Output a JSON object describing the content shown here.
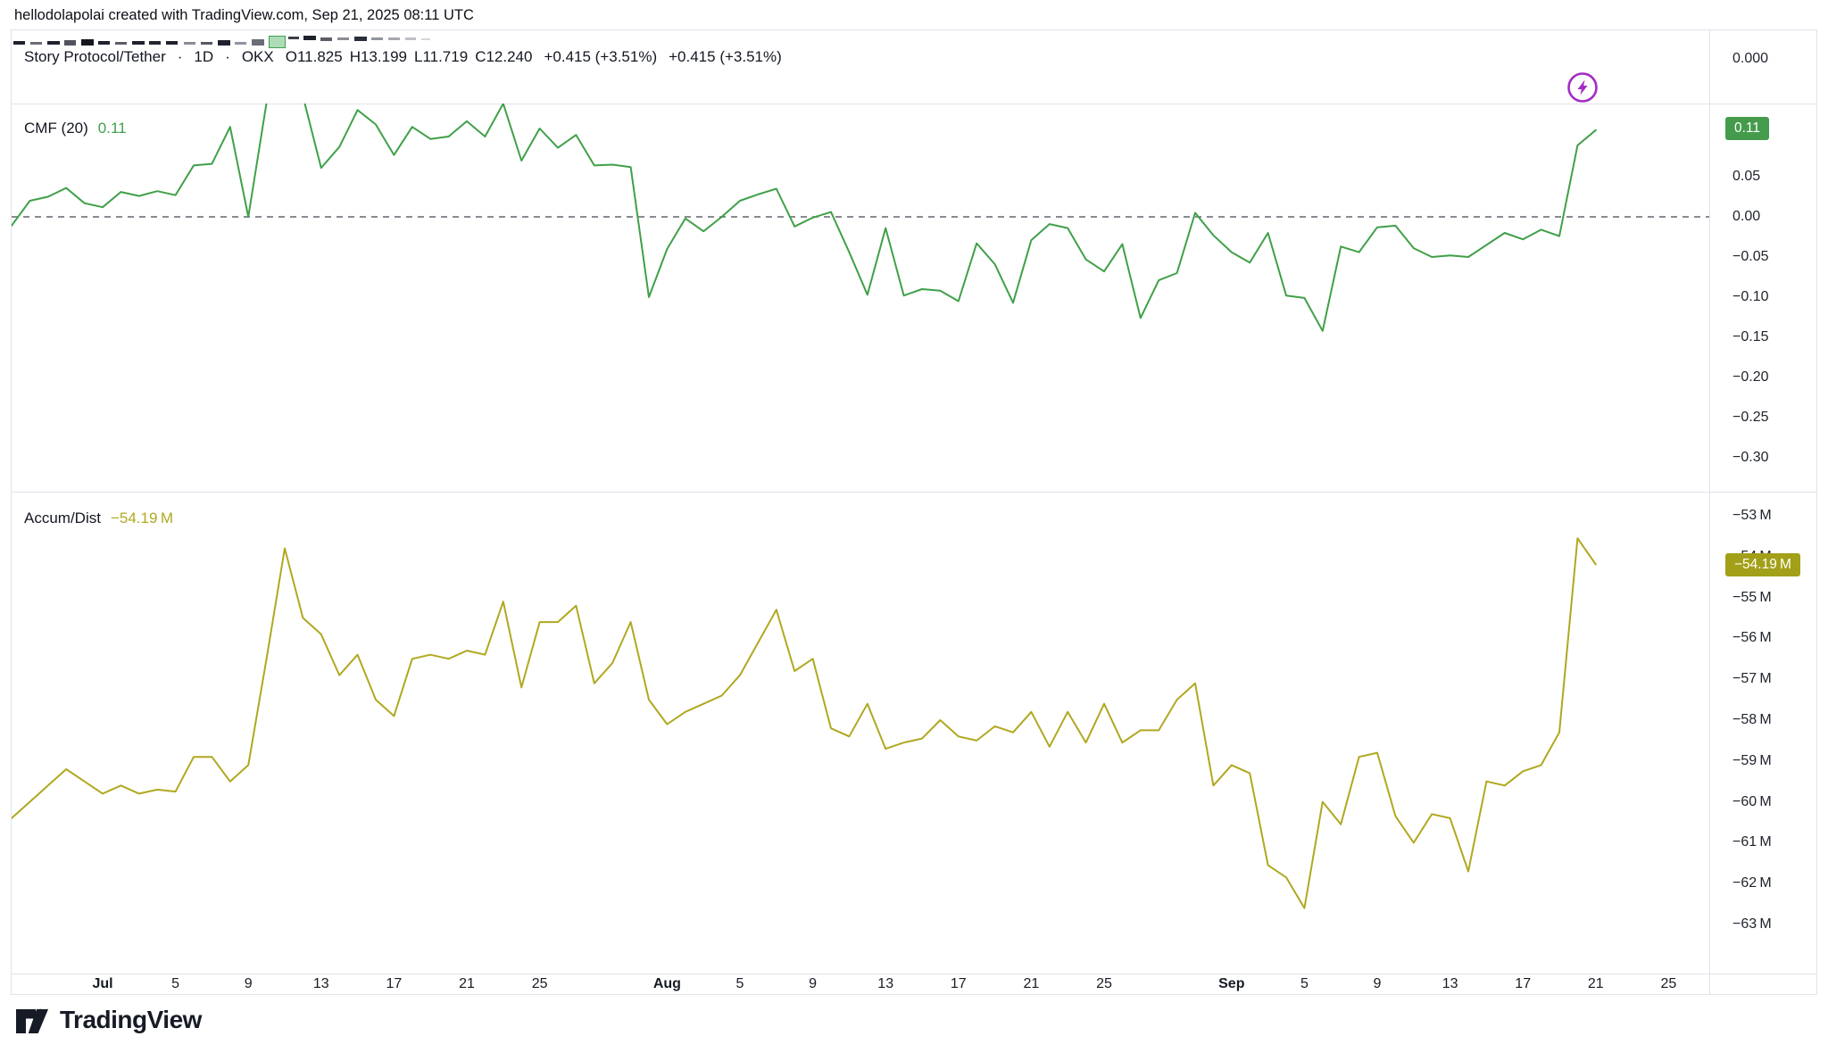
{
  "header": {
    "attribution": "hellodolapolai created with TradingView.com, Sep 21, 2025 08:11 UTC"
  },
  "legend": {
    "title": "Story Protocol/Tether",
    "sep": "·",
    "interval": "1D",
    "exchange": "OKX",
    "open": "O11.825",
    "high": "H13.199",
    "low": "L11.719",
    "close": "C12.240",
    "change": "+0.415 (+3.51%)",
    "change_repeat": "+0.415 (+3.51%)"
  },
  "panes": {
    "price": {
      "tick": "0.000"
    },
    "cmf": {
      "label": "CMF (20)",
      "value": "0.11",
      "badge": "0.11",
      "color": "#3fa048",
      "badge_color": "#459b4c",
      "axis_ticks": [
        {
          "t": "0.10",
          "v": 0.1
        },
        {
          "t": "0.05",
          "v": 0.05
        },
        {
          "t": "0.00",
          "v": 0.0
        },
        {
          "t": "−0.05",
          "v": -0.05
        },
        {
          "t": "−0.10",
          "v": -0.1
        },
        {
          "t": "−0.15",
          "v": -0.15
        },
        {
          "t": "−0.20",
          "v": -0.2
        },
        {
          "t": "−0.25",
          "v": -0.25
        },
        {
          "t": "−0.30",
          "v": -0.3
        }
      ]
    },
    "accum": {
      "label": "Accum/Dist",
      "value": "−54.19 M",
      "badge": "−54.19 M",
      "color": "#b0a81f",
      "badge_color": "#a2a018",
      "axis_ticks": [
        {
          "t": "−53 M",
          "v": -53
        },
        {
          "t": "−54 M",
          "v": -54
        },
        {
          "t": "−55 M",
          "v": -55
        },
        {
          "t": "−56 M",
          "v": -56
        },
        {
          "t": "−57 M",
          "v": -57
        },
        {
          "t": "−58 M",
          "v": -58
        },
        {
          "t": "−59 M",
          "v": -59
        },
        {
          "t": "−60 M",
          "v": -60
        },
        {
          "t": "−61 M",
          "v": -61
        },
        {
          "t": "−62 M",
          "v": -62
        },
        {
          "t": "−63 M",
          "v": -63
        }
      ]
    }
  },
  "time_axis": {
    "labels": [
      {
        "t": "Jul",
        "d": 0,
        "b": true
      },
      {
        "t": "5",
        "d": 4
      },
      {
        "t": "9",
        "d": 8
      },
      {
        "t": "13",
        "d": 12
      },
      {
        "t": "17",
        "d": 16
      },
      {
        "t": "21",
        "d": 20
      },
      {
        "t": "25",
        "d": 24
      },
      {
        "t": "Aug",
        "d": 31,
        "b": true
      },
      {
        "t": "5",
        "d": 35
      },
      {
        "t": "9",
        "d": 39
      },
      {
        "t": "13",
        "d": 43
      },
      {
        "t": "17",
        "d": 47
      },
      {
        "t": "21",
        "d": 51
      },
      {
        "t": "25",
        "d": 55
      },
      {
        "t": "Sep",
        "d": 62,
        "b": true
      },
      {
        "t": "5",
        "d": 66
      },
      {
        "t": "9",
        "d": 70
      },
      {
        "t": "13",
        "d": 74
      },
      {
        "t": "17",
        "d": 78
      },
      {
        "t": "21",
        "d": 82
      },
      {
        "t": "25",
        "d": 86
      }
    ]
  },
  "logo": {
    "text": "TradingView"
  },
  "icons": {
    "flash_color": "#a32cc4"
  },
  "chart_data": [
    {
      "type": "line",
      "name": "CMF (20)",
      "pane": "cmf",
      "color": "#3fa048",
      "x_unit": "days from Jul 1, 2025 (daily bars, Jun 26 – Sep 21)",
      "x_start_day": -5,
      "ylim": [
        -0.33,
        0.141
      ],
      "zero_line": 0,
      "last_value": 0.11,
      "values": [
        -0.011,
        0.02,
        0.025,
        0.036,
        0.017,
        0.012,
        0.031,
        0.026,
        0.032,
        0.027,
        0.064,
        0.066,
        0.112,
        0.0,
        0.142,
        0.165,
        0.15,
        0.061,
        0.087,
        0.133,
        0.115,
        0.077,
        0.112,
        0.097,
        0.1,
        0.119,
        0.1,
        0.141,
        0.07,
        0.11,
        0.086,
        0.102,
        0.064,
        0.065,
        0.062,
        -0.1,
        -0.04,
        -0.002,
        -0.018,
        0.0,
        0.02,
        0.028,
        0.035,
        -0.012,
        -0.001,
        0.006,
        -0.044,
        -0.097,
        -0.014,
        -0.098,
        -0.09,
        -0.092,
        -0.105,
        -0.033,
        -0.059,
        -0.107,
        -0.029,
        -0.009,
        -0.014,
        -0.053,
        -0.068,
        -0.034,
        -0.126,
        -0.079,
        -0.07,
        0.005,
        -0.023,
        -0.044,
        -0.057,
        -0.02,
        -0.098,
        -0.101,
        -0.142,
        -0.037,
        -0.044,
        -0.013,
        -0.011,
        -0.039,
        -0.05,
        -0.048,
        -0.05,
        -0.035,
        -0.02,
        -0.028,
        -0.016,
        -0.024,
        0.089,
        0.108
      ]
    },
    {
      "type": "line",
      "name": "Accum/Dist (millions USDT)",
      "pane": "accum",
      "color": "#b0a81f",
      "x_unit": "days from Jul 1, 2025 (daily bars, Jun 26 – Sep 21)",
      "x_start_day": -5,
      "ylim": [
        -63.5,
        -53
      ],
      "last_value": -54.19,
      "values": [
        -60.4,
        -60.0,
        -59.6,
        -59.2,
        -59.5,
        -59.8,
        -59.6,
        -59.8,
        -59.7,
        -59.75,
        -58.9,
        -58.9,
        -59.5,
        -59.1,
        -56.5,
        -53.8,
        -55.5,
        -55.9,
        -56.9,
        -56.4,
        -57.5,
        -57.9,
        -56.5,
        -56.4,
        -56.5,
        -56.3,
        -56.4,
        -55.1,
        -57.2,
        -55.6,
        -55.6,
        -55.2,
        -57.1,
        -56.6,
        -55.6,
        -57.5,
        -58.1,
        -57.8,
        -57.6,
        -57.4,
        -56.9,
        -56.1,
        -55.3,
        -56.8,
        -56.5,
        -58.2,
        -58.4,
        -57.6,
        -58.7,
        -58.55,
        -58.45,
        -58.0,
        -58.4,
        -58.5,
        -58.15,
        -58.3,
        -57.8,
        -58.65,
        -57.8,
        -58.55,
        -57.6,
        -58.55,
        -58.25,
        -58.25,
        -57.5,
        -57.1,
        -59.6,
        -59.1,
        -59.3,
        -61.55,
        -61.85,
        -62.6,
        -60.0,
        -60.55,
        -58.9,
        -58.8,
        -60.35,
        -61.0,
        -60.3,
        -60.4,
        -61.7,
        -59.5,
        -59.6,
        -59.25,
        -59.1,
        -58.3,
        -53.55,
        -54.19
      ]
    },
    {
      "type": "candlestick-strip",
      "name": "compressed price pane",
      "pane": "price",
      "candles": [
        {
          "x": 2,
          "y": 12,
          "w": 13,
          "h": 4,
          "c": "#1e222d"
        },
        {
          "x": 21,
          "y": 13,
          "w": 13,
          "h": 3,
          "c": "#6a6d78"
        },
        {
          "x": 40,
          "y": 12,
          "w": 14,
          "h": 4,
          "c": "#1e222d"
        },
        {
          "x": 59,
          "y": 11,
          "w": 13,
          "h": 6,
          "c": "#50535e"
        },
        {
          "x": 78,
          "y": 10,
          "w": 14,
          "h": 7,
          "c": "#15181f"
        },
        {
          "x": 97,
          "y": 12,
          "w": 13,
          "h": 4,
          "c": "#1e222d"
        },
        {
          "x": 116,
          "y": 13,
          "w": 13,
          "h": 3,
          "c": "#5b5e68"
        },
        {
          "x": 135,
          "y": 12,
          "w": 14,
          "h": 4,
          "c": "#1e222d"
        },
        {
          "x": 154,
          "y": 12,
          "w": 13,
          "h": 4,
          "c": "#23262e"
        },
        {
          "x": 173,
          "y": 12,
          "w": 13,
          "h": 4,
          "c": "#1e222d"
        },
        {
          "x": 193,
          "y": 13,
          "w": 13,
          "h": 3,
          "c": "#8a8d94"
        },
        {
          "x": 212,
          "y": 13,
          "w": 13,
          "h": 3,
          "c": "#565962"
        },
        {
          "x": 231,
          "y": 11,
          "w": 14,
          "h": 6,
          "c": "#1e222d"
        },
        {
          "x": 250,
          "y": 13,
          "w": 13,
          "h": 3,
          "c": "#9094a0"
        },
        {
          "x": 269,
          "y": 10,
          "w": 14,
          "h": 7,
          "c": "#6a6d78"
        },
        {
          "x": 288,
          "y": 6,
          "w": 17,
          "h": 12,
          "c": "#aedcb6",
          "border": "#3e9e4f"
        },
        {
          "x": 310,
          "y": 7,
          "w": 12,
          "h": 3,
          "c": "#3a3e48"
        },
        {
          "x": 327,
          "y": 6,
          "w": 14,
          "h": 5,
          "c": "#1e222d"
        },
        {
          "x": 346,
          "y": 8,
          "w": 13,
          "h": 4,
          "c": "#5b5e68"
        },
        {
          "x": 365,
          "y": 8,
          "w": 13,
          "h": 3,
          "c": "#8a8d94"
        },
        {
          "x": 384,
          "y": 7,
          "w": 14,
          "h": 5,
          "c": "#2a2e39"
        },
        {
          "x": 403,
          "y": 8,
          "w": 13,
          "h": 3,
          "c": "#9094a0"
        },
        {
          "x": 422,
          "y": 8,
          "w": 13,
          "h": 3,
          "c": "#a4a7b0"
        },
        {
          "x": 441,
          "y": 8,
          "w": 12,
          "h": 3,
          "c": "#bcbfc6"
        },
        {
          "x": 459,
          "y": 9,
          "w": 10,
          "h": 2,
          "c": "#d4d6db"
        }
      ]
    }
  ]
}
